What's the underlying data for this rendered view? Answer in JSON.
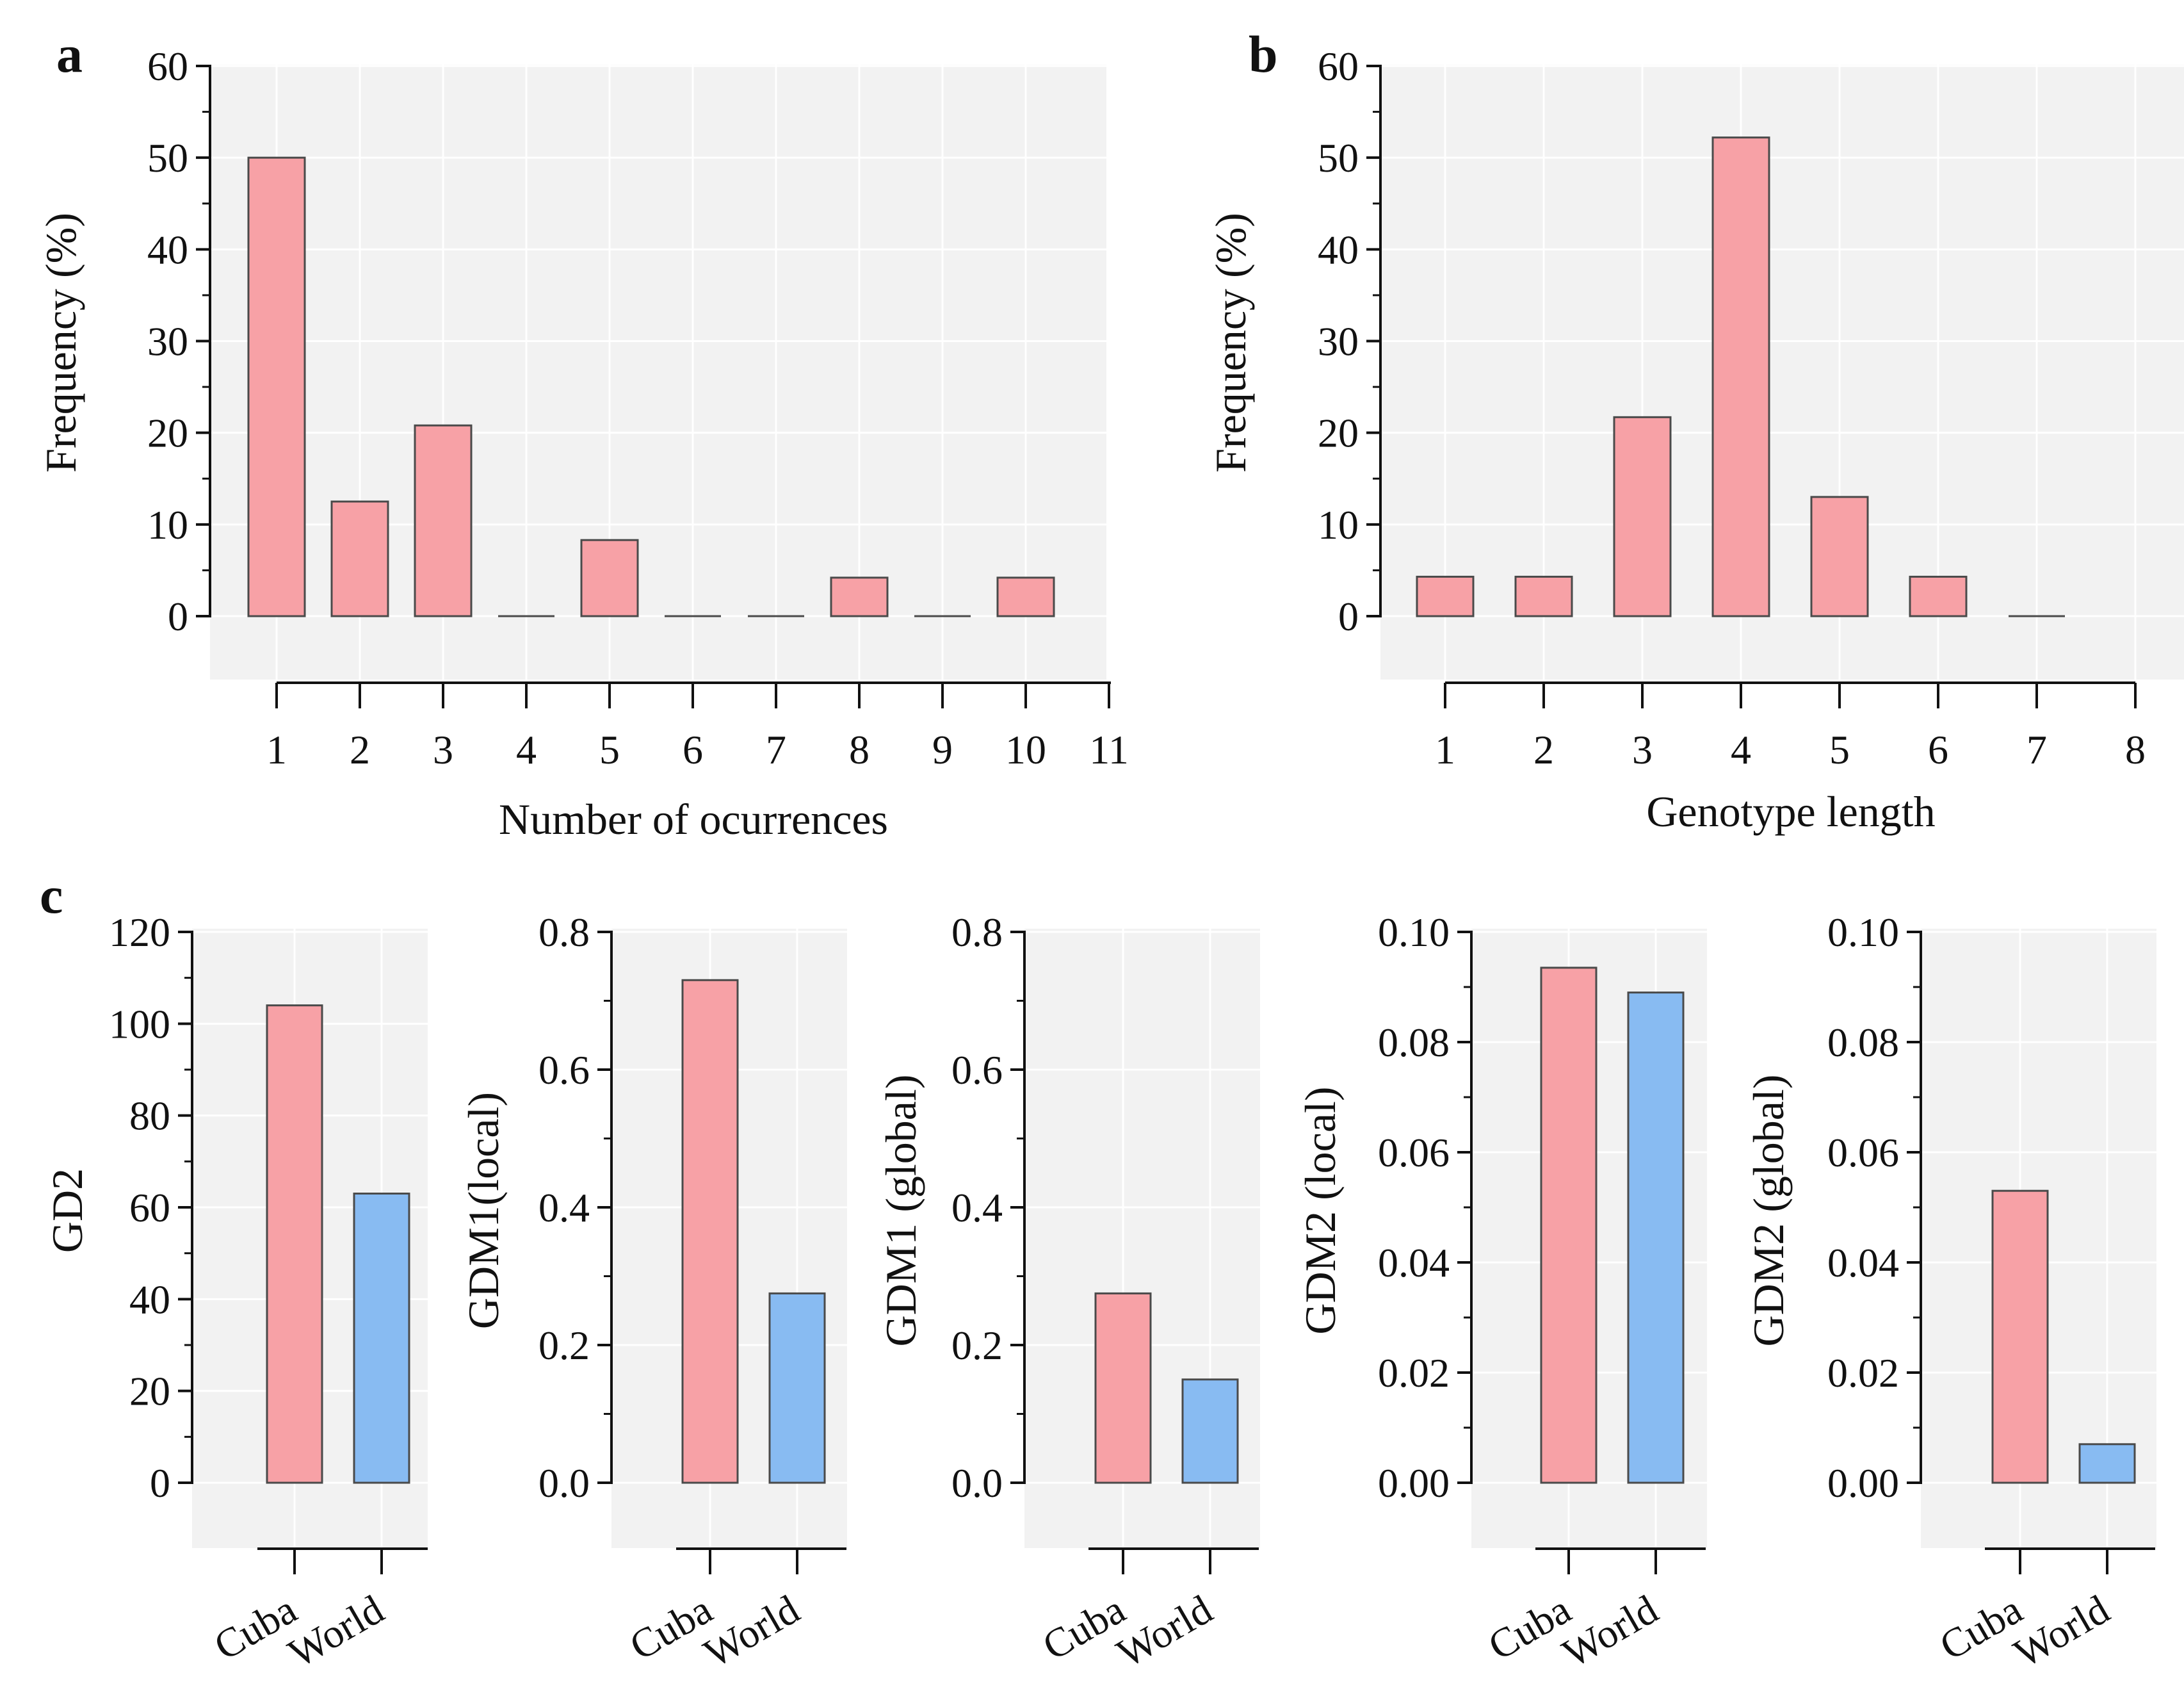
{
  "colors": {
    "cuba": "#F7A1A6",
    "world": "#88BBF2",
    "bar_stroke": "#4a4a4a",
    "plot_bg": "#F2F2F2",
    "grid": "#FFFFFF",
    "axis": "#111111"
  },
  "chart_data": [
    {
      "id": "a",
      "type": "bar",
      "panel_label": "a",
      "xlabel": "Number of ocurrences",
      "ylabel": "Frequency (%)",
      "categories": [
        "1",
        "2",
        "3",
        "4",
        "5",
        "6",
        "7",
        "8",
        "9",
        "10",
        "11"
      ],
      "values": [
        50,
        12.5,
        20.8,
        0,
        8.3,
        0,
        0,
        4.2,
        0,
        4.2,
        null
      ],
      "ylim": [
        0,
        60
      ],
      "yticks": [
        0,
        10,
        20,
        30,
        40,
        50,
        60
      ],
      "ytick_labels": [
        "0",
        "10",
        "20",
        "30",
        "40",
        "50",
        "60"
      ],
      "grid": true
    },
    {
      "id": "b",
      "type": "bar",
      "panel_label": "b",
      "xlabel": "Genotype length",
      "ylabel": "Frequency (%)",
      "categories": [
        "1",
        "2",
        "3",
        "4",
        "5",
        "6",
        "7",
        "8"
      ],
      "values": [
        4.3,
        4.3,
        21.7,
        52.2,
        13.0,
        4.3,
        0,
        null
      ],
      "ylim": [
        0,
        60
      ],
      "yticks": [
        0,
        10,
        20,
        30,
        40,
        50,
        60
      ],
      "ytick_labels": [
        "0",
        "10",
        "20",
        "30",
        "40",
        "50",
        "60"
      ],
      "grid": true
    },
    {
      "id": "c1",
      "type": "bar",
      "panel_label": "c",
      "ylabel": "GD2",
      "categories": [
        "Cuba",
        "World"
      ],
      "values": [
        104,
        63
      ],
      "ylim": [
        0,
        120
      ],
      "yticks": [
        0,
        20,
        40,
        60,
        80,
        100,
        120
      ],
      "ytick_labels": [
        "0",
        "20",
        "40",
        "60",
        "80",
        "100",
        "120"
      ],
      "grid": true
    },
    {
      "id": "c2",
      "type": "bar",
      "ylabel": "GDM1(local)",
      "categories": [
        "Cuba",
        "World"
      ],
      "values": [
        0.73,
        0.275
      ],
      "ylim": [
        0,
        0.8
      ],
      "yticks": [
        0,
        0.2,
        0.4,
        0.6,
        0.8
      ],
      "ytick_labels": [
        "0.0",
        "0.2",
        "0.4",
        "0.6",
        "0.8"
      ],
      "grid": true
    },
    {
      "id": "c3",
      "type": "bar",
      "ylabel": "GDM1 (global)",
      "categories": [
        "Cuba",
        "World"
      ],
      "values": [
        0.275,
        0.15
      ],
      "ylim": [
        0,
        0.8
      ],
      "yticks": [
        0,
        0.2,
        0.4,
        0.6,
        0.8
      ],
      "ytick_labels": [
        "0.0",
        "0.2",
        "0.4",
        "0.6",
        "0.8"
      ],
      "grid": true
    },
    {
      "id": "c4",
      "type": "bar",
      "ylabel": "GDM2 (local)",
      "categories": [
        "Cuba",
        "World"
      ],
      "values": [
        0.0935,
        0.089
      ],
      "ylim": [
        0,
        0.1
      ],
      "yticks": [
        0,
        0.02,
        0.04,
        0.06,
        0.08,
        0.1
      ],
      "ytick_labels": [
        "0.00",
        "0.02",
        "0.04",
        "0.06",
        "0.08",
        "0.10"
      ],
      "grid": true
    },
    {
      "id": "c5",
      "type": "bar",
      "ylabel": "GDM2 (global)",
      "categories": [
        "Cuba",
        "World"
      ],
      "values": [
        0.053,
        0.007
      ],
      "ylim": [
        0,
        0.1
      ],
      "yticks": [
        0,
        0.02,
        0.04,
        0.06,
        0.08,
        0.1
      ],
      "ytick_labels": [
        "0.00",
        "0.02",
        "0.04",
        "0.06",
        "0.08",
        "0.10"
      ],
      "grid": true
    }
  ]
}
